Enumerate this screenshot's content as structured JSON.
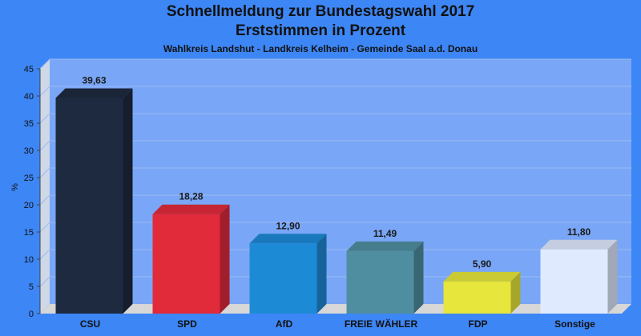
{
  "header": {
    "title_line1": "Schnellmeldung zur Bundestagswahl 2017",
    "title_line2": "Erststimmen in Prozent",
    "subtitle": "Wahlkreis Landshut - Landkreis Kelheim - Gemeinde Saal a.d. Donau"
  },
  "colors": {
    "background": "#3d86f5",
    "plot_wall": "#79a6f6"
  },
  "chart_data": {
    "type": "bar",
    "title": "Schnellmeldung zur Bundestagswahl 2017",
    "subtitle": "Erststimmen in Prozent",
    "ylabel": "%",
    "xlabel": "",
    "ylim": [
      0,
      45
    ],
    "yticks": [
      0,
      5,
      10,
      15,
      20,
      25,
      30,
      35,
      40,
      45
    ],
    "grid": true,
    "categories": [
      "CSU",
      "SPD",
      "AfD",
      "FREIE WÄHLER",
      "FDP",
      "Sonstige"
    ],
    "values": [
      39.63,
      18.28,
      12.9,
      11.49,
      5.9,
      11.8
    ],
    "value_labels": [
      "39,63",
      "18,28",
      "12,90",
      "11,49",
      "5,90",
      "11,80"
    ],
    "bar_colors": [
      "#1e2a40",
      "#e12a3a",
      "#1d8ad6",
      "#4f8ea0",
      "#e6e63c",
      "#e0eafe"
    ]
  }
}
